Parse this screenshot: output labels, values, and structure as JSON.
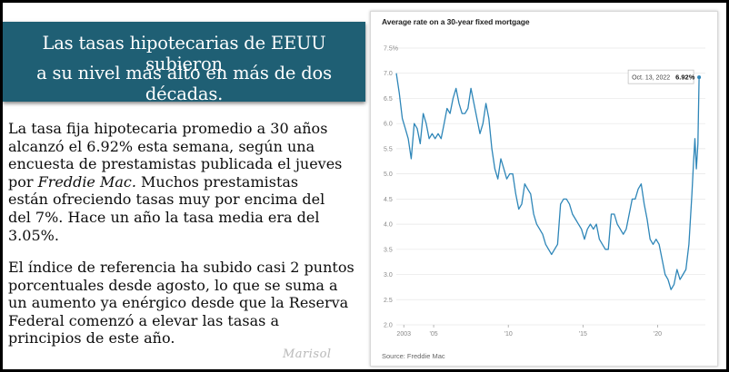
{
  "headline": {
    "line1": "Las tasas hipotecarias de EEUU subieron",
    "line2": "a su nivel más alto en más de dos décadas."
  },
  "article": {
    "p1_lines": [
      "La tasa fija hipotecaria promedio a 30 años",
      "alcanzó el 6.92% esta semana, según una",
      "encuesta de prestamistas publicada el jueves",
      "por  Freddie Mac. Muchos prestamistas",
      "están ofreciendo tasas muy por encima del",
      "del 7%. Hace un año la tasa media era del",
      "3.05%."
    ],
    "p2_lines": [
      "El índice de referencia ha subido casi 2 puntos",
      "porcentuales desde agosto, lo que se suma a",
      "un aumento ya enérgico desde que la Reserva",
      "Federal comenzó a elevar las tasas a",
      "principios de este año."
    ]
  },
  "watermark": "Marisol",
  "chart_data": {
    "type": "line",
    "title": "Average rate on a 30-year fixed mortgage",
    "source": "Source: Freddie Mac",
    "ylim": [
      2.0,
      7.5
    ],
    "yticks": [
      "7.5%",
      "7.0",
      "6.5",
      "6.0",
      "5.5",
      "5.0",
      "4.5",
      "4.0",
      "3.5",
      "3.0",
      "2.5",
      "2.0"
    ],
    "xlim": [
      2002.5,
      2023.2
    ],
    "xticks": [
      {
        "label": "2003",
        "year": 2003
      },
      {
        "label": "'05",
        "year": 2005
      },
      {
        "label": "'10",
        "year": 2010
      },
      {
        "label": "'15",
        "year": 2015
      },
      {
        "label": "'20",
        "year": 2020
      }
    ],
    "grid": true,
    "color": "#2e86b8",
    "annotation": {
      "date": "Oct. 13, 2022",
      "value_label": "6.92%",
      "year": 2022.78,
      "value": 6.92
    },
    "series": [
      {
        "x": [
          2002.5,
          2002.7,
          2002.9,
          2003.1,
          2003.3,
          2003.5,
          2003.7,
          2003.9,
          2004.1,
          2004.3,
          2004.5,
          2004.7,
          2004.9,
          2005.1,
          2005.3,
          2005.5,
          2005.7,
          2005.9,
          2006.1,
          2006.3,
          2006.5,
          2006.7,
          2006.9,
          2007.1,
          2007.3,
          2007.5,
          2007.7,
          2007.9,
          2008.1,
          2008.3,
          2008.5,
          2008.7,
          2008.9,
          2009.1,
          2009.3,
          2009.5,
          2009.7,
          2009.9,
          2010.1,
          2010.3,
          2010.5,
          2010.7,
          2010.9,
          2011.1,
          2011.3,
          2011.5,
          2011.7,
          2011.9,
          2012.1,
          2012.3,
          2012.5,
          2012.7,
          2012.9,
          2013.1,
          2013.3,
          2013.5,
          2013.7,
          2013.9,
          2014.1,
          2014.3,
          2014.5,
          2014.7,
          2014.9,
          2015.1,
          2015.3,
          2015.5,
          2015.7,
          2015.9,
          2016.1,
          2016.3,
          2016.5,
          2016.7,
          2016.9,
          2017.1,
          2017.3,
          2017.5,
          2017.7,
          2017.9,
          2018.1,
          2018.3,
          2018.5,
          2018.7,
          2018.9,
          2019.1,
          2019.3,
          2019.5,
          2019.7,
          2019.9,
          2020.1,
          2020.3,
          2020.5,
          2020.7,
          2020.9,
          2021.1,
          2021.3,
          2021.5,
          2021.7,
          2021.9,
          2022.1,
          2022.3,
          2022.4,
          2022.5,
          2022.6,
          2022.7,
          2022.78
        ],
        "y": [
          7.0,
          6.6,
          6.1,
          5.9,
          5.7,
          5.3,
          6.0,
          5.9,
          5.6,
          6.2,
          6.0,
          5.7,
          5.8,
          5.7,
          5.8,
          5.7,
          6.0,
          6.3,
          6.2,
          6.5,
          6.7,
          6.4,
          6.2,
          6.2,
          6.3,
          6.7,
          6.4,
          6.1,
          5.8,
          6.0,
          6.4,
          6.1,
          5.5,
          5.1,
          4.9,
          5.3,
          5.1,
          4.9,
          5.0,
          5.0,
          4.6,
          4.3,
          4.4,
          4.8,
          4.7,
          4.6,
          4.2,
          4.0,
          3.9,
          3.8,
          3.6,
          3.5,
          3.4,
          3.5,
          3.6,
          4.4,
          4.5,
          4.5,
          4.4,
          4.2,
          4.1,
          4.0,
          3.9,
          3.7,
          3.9,
          4.0,
          3.9,
          4.0,
          3.7,
          3.6,
          3.5,
          3.5,
          4.2,
          4.2,
          4.0,
          3.9,
          3.8,
          3.9,
          4.2,
          4.5,
          4.5,
          4.7,
          4.8,
          4.4,
          4.1,
          3.7,
          3.6,
          3.7,
          3.6,
          3.3,
          3.0,
          2.9,
          2.7,
          2.8,
          3.1,
          2.9,
          3.0,
          3.1,
          3.6,
          4.6,
          5.2,
          5.7,
          5.1,
          5.6,
          6.92
        ]
      }
    ]
  }
}
